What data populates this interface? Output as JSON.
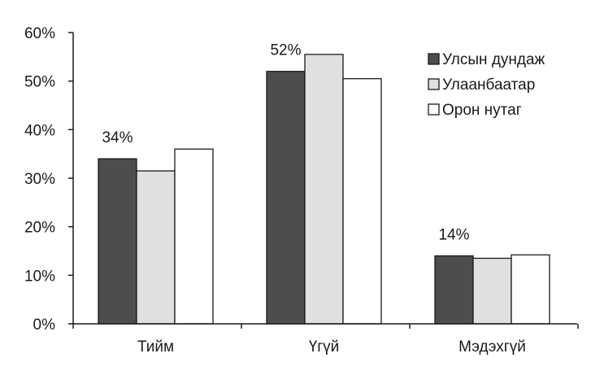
{
  "chart_data": {
    "type": "bar",
    "categories": [
      "Тийм",
      "Үгүй",
      "Мэдэхгүй"
    ],
    "series": [
      {
        "name": "Улсын дундаж",
        "values": [
          34,
          52,
          14
        ],
        "color": "#4d4d4d"
      },
      {
        "name": "Улаанбаатар",
        "values": [
          31.5,
          55.5,
          13.5
        ],
        "color": "#e0e0e0"
      },
      {
        "name": "Орон нутаг",
        "values": [
          36,
          50.5,
          14.2
        ],
        "color": "#ffffff"
      }
    ],
    "data_labels": [
      {
        "category_index": 0,
        "text": "34%"
      },
      {
        "category_index": 1,
        "text": "52%"
      },
      {
        "category_index": 2,
        "text": "14%"
      }
    ],
    "y_ticks": [
      "0%",
      "10%",
      "20%",
      "30%",
      "40%",
      "50%",
      "60%"
    ],
    "ylim": [
      0,
      60
    ],
    "title": "",
    "xlabel": "",
    "ylabel": "",
    "legend_position": "top-right",
    "grid": false
  }
}
